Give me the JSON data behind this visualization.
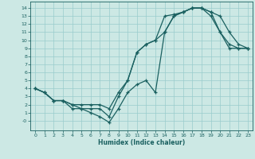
{
  "background_color": "#cce8e4",
  "grid_color": "#99cccc",
  "line_color": "#1a6060",
  "xlabel": "Humidex (Indice chaleur)",
  "xlim": [
    -0.5,
    23.5
  ],
  "ylim": [
    -1.2,
    14.8
  ],
  "xticks": [
    0,
    1,
    2,
    3,
    4,
    5,
    6,
    7,
    8,
    9,
    10,
    11,
    12,
    13,
    14,
    15,
    16,
    17,
    18,
    19,
    20,
    21,
    22,
    23
  ],
  "yticks": [
    0,
    1,
    2,
    3,
    4,
    5,
    6,
    7,
    8,
    9,
    10,
    11,
    12,
    13,
    14
  ],
  "ytick_labels": [
    "-0",
    "1",
    "2",
    "3",
    "4",
    "5",
    "6",
    "7",
    "8",
    "9",
    "10",
    "11",
    "12",
    "13",
    "14"
  ],
  "series1_x": [
    0,
    1,
    2,
    3,
    4,
    5,
    6,
    7,
    8,
    9,
    10,
    11,
    12,
    13,
    14,
    15,
    16,
    17,
    18,
    19,
    20,
    21,
    22,
    23
  ],
  "series1_y": [
    4.0,
    3.5,
    2.5,
    2.5,
    2.0,
    2.0,
    2.0,
    2.0,
    1.5,
    3.5,
    5.0,
    8.5,
    9.5,
    10.0,
    11.0,
    13.0,
    13.5,
    14.0,
    14.0,
    13.5,
    13.0,
    11.0,
    9.5,
    9.0
  ],
  "series2_x": [
    0,
    1,
    2,
    3,
    4,
    5,
    6,
    7,
    8,
    9,
    10,
    11,
    12,
    13,
    14,
    15,
    16,
    17,
    18,
    19,
    20,
    21,
    22,
    23
  ],
  "series2_y": [
    4.0,
    3.5,
    2.5,
    2.5,
    2.0,
    1.5,
    1.5,
    1.5,
    0.5,
    3.0,
    5.0,
    8.5,
    9.5,
    10.0,
    13.0,
    13.2,
    13.5,
    14.0,
    14.0,
    13.5,
    11.0,
    9.5,
    9.0,
    9.0
  ],
  "series3_x": [
    0,
    1,
    2,
    3,
    4,
    5,
    6,
    7,
    8,
    9,
    10,
    11,
    12,
    13,
    14,
    15,
    16,
    17,
    18,
    19,
    20,
    21,
    22,
    23
  ],
  "series3_y": [
    4.0,
    3.5,
    2.5,
    2.5,
    1.5,
    1.5,
    1.0,
    0.5,
    -0.2,
    1.5,
    3.5,
    4.5,
    5.0,
    3.5,
    11.0,
    13.0,
    13.5,
    14.0,
    14.0,
    13.0,
    11.0,
    9.0,
    9.0,
    9.0
  ]
}
